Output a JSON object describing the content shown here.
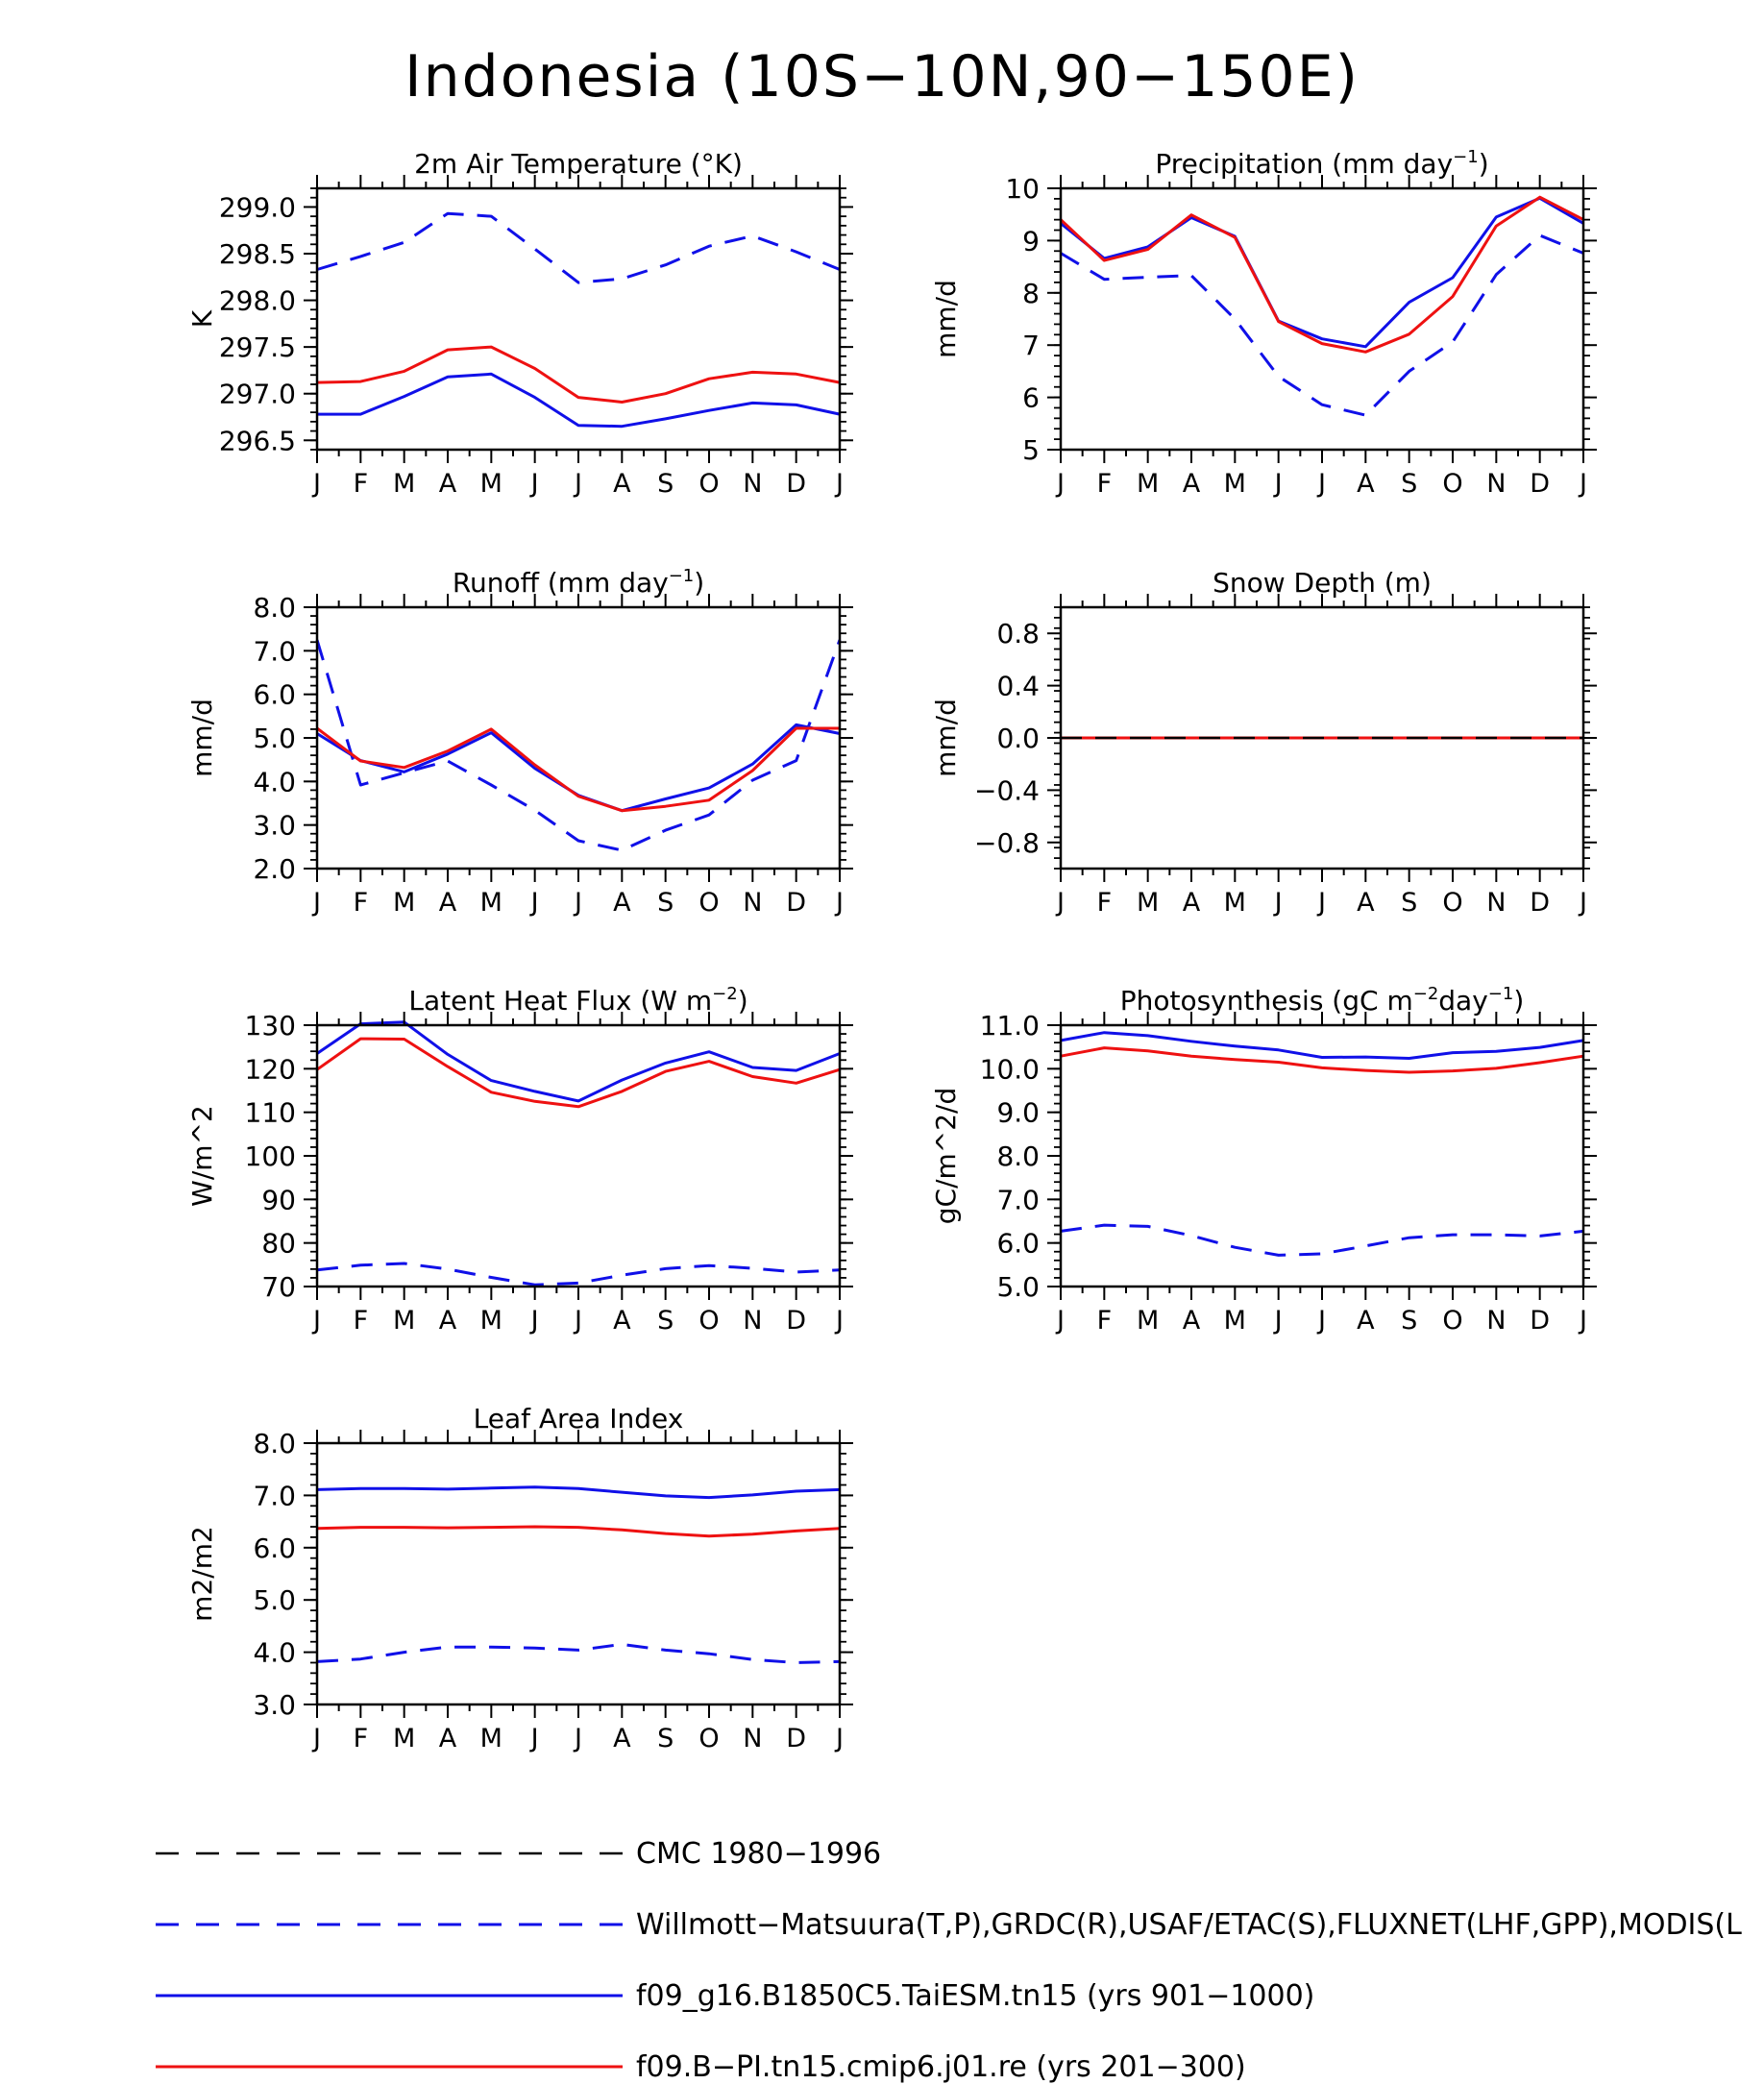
{
  "page_title": "Indonesia (10S−10N,90−150E)",
  "months": [
    "J",
    "F",
    "M",
    "A",
    "M",
    "J",
    "J",
    "A",
    "S",
    "O",
    "N",
    "D",
    "J"
  ],
  "styles": {
    "obs_color": "#1010e8",
    "model1_color": "#1010e8",
    "model2_color": "#ee1111",
    "cmc_color": "#000000"
  },
  "chart_data": [
    {
      "type": "line",
      "title": "2m Air Temperature (°K)",
      "ylabel": "K",
      "ylim": [
        296.4,
        299.2
      ],
      "yticks": [
        296.5,
        297.0,
        297.5,
        298.0,
        298.5,
        299.0
      ],
      "ytick_labels": [
        "296.5",
        "297.0",
        "297.5",
        "298.0",
        "298.5",
        "299.0"
      ],
      "series": [
        {
          "style": "obs",
          "values": [
            298.33,
            298.47,
            298.62,
            298.93,
            298.9,
            298.55,
            298.19,
            298.23,
            298.38,
            298.58,
            298.69,
            298.52,
            298.33
          ]
        },
        {
          "style": "model1",
          "values": [
            296.78,
            296.78,
            296.97,
            297.18,
            297.21,
            296.96,
            296.66,
            296.65,
            296.73,
            296.82,
            296.9,
            296.88,
            296.78
          ]
        },
        {
          "style": "model2",
          "values": [
            297.12,
            297.13,
            297.24,
            297.47,
            297.5,
            297.27,
            296.96,
            296.91,
            297.0,
            297.16,
            297.23,
            297.21,
            297.12
          ]
        }
      ]
    },
    {
      "type": "line",
      "title": "Precipitation (mm day",
      "title_sup": "−1",
      "title_end": ")",
      "ylabel": "mm/d",
      "ylim": [
        5,
        10
      ],
      "yticks": [
        5,
        6,
        7,
        8,
        9,
        10
      ],
      "ytick_labels": [
        "5",
        "6",
        "7",
        "8",
        "9",
        "10"
      ],
      "series": [
        {
          "style": "obs",
          "values": [
            8.76,
            8.26,
            8.3,
            8.33,
            7.5,
            6.4,
            5.86,
            5.66,
            6.5,
            7.06,
            8.35,
            9.1,
            8.76
          ]
        },
        {
          "style": "model1",
          "values": [
            9.33,
            8.66,
            8.88,
            9.44,
            9.08,
            7.46,
            7.12,
            6.97,
            7.82,
            8.29,
            9.45,
            9.81,
            9.33
          ]
        },
        {
          "style": "model2",
          "values": [
            9.4,
            8.62,
            8.83,
            9.49,
            9.06,
            7.45,
            7.03,
            6.87,
            7.21,
            7.93,
            9.28,
            9.83,
            9.4
          ]
        }
      ]
    },
    {
      "type": "line",
      "title": "Runoff (mm day",
      "title_sup": "−1",
      "title_end": ")",
      "ylabel": "mm/d",
      "ylim": [
        2,
        8
      ],
      "yticks": [
        2,
        3,
        4,
        5,
        6,
        7,
        8
      ],
      "ytick_labels": [
        "2.0",
        "3.0",
        "4.0",
        "5.0",
        "6.0",
        "7.0",
        "8.0"
      ],
      "series": [
        {
          "style": "obs",
          "values": [
            7.25,
            3.92,
            4.2,
            4.47,
            3.92,
            3.34,
            2.64,
            2.42,
            2.88,
            3.23,
            4.03,
            4.48,
            7.25
          ]
        },
        {
          "style": "model1",
          "values": [
            5.1,
            4.48,
            4.22,
            4.63,
            5.12,
            4.3,
            3.68,
            3.33,
            3.6,
            3.85,
            4.4,
            5.3,
            5.1
          ]
        },
        {
          "style": "model2",
          "values": [
            5.22,
            4.47,
            4.32,
            4.7,
            5.2,
            4.38,
            3.66,
            3.33,
            3.43,
            3.57,
            4.25,
            5.22,
            5.22
          ]
        }
      ]
    },
    {
      "type": "line",
      "title": "Snow Depth (m)",
      "ylabel": "mm/d",
      "ylim": [
        -1,
        1
      ],
      "yticks": [
        -0.8,
        -0.4,
        0,
        0.4,
        0.8
      ],
      "ytick_labels": [
        "−0.8",
        "−0.4",
        "0.0",
        "0.4",
        "0.8"
      ],
      "series": [
        {
          "style": "model1",
          "values": [
            0,
            0,
            0,
            0,
            0,
            0,
            0,
            0,
            0,
            0,
            0,
            0,
            0
          ]
        },
        {
          "style": "model2",
          "values": [
            0,
            0,
            0,
            0,
            0,
            0,
            0,
            0,
            0,
            0,
            0,
            0,
            0
          ]
        },
        {
          "style": "cmc",
          "values": [
            0,
            0,
            0,
            0,
            0,
            0,
            0,
            0,
            0,
            0,
            0,
            0,
            0
          ]
        }
      ]
    },
    {
      "type": "line",
      "title": "Latent Heat Flux (W m",
      "title_sup": "−2",
      "title_end": ")",
      "ylabel": "W/m^2",
      "ylim": [
        70,
        130
      ],
      "yticks": [
        70,
        80,
        90,
        100,
        110,
        120,
        130
      ],
      "ytick_labels": [
        "70",
        "80",
        "90",
        "100",
        "110",
        "120",
        "130"
      ],
      "series": [
        {
          "style": "obs",
          "values": [
            73.8,
            74.9,
            75.3,
            74.0,
            72.1,
            70.4,
            70.8,
            72.6,
            74.1,
            74.8,
            74.2,
            73.3,
            73.8
          ]
        },
        {
          "style": "model1",
          "values": [
            123.5,
            130.3,
            130.7,
            123.3,
            117.3,
            114.8,
            112.6,
            117.4,
            121.3,
            123.9,
            120.3,
            119.6,
            123.5
          ]
        },
        {
          "style": "model2",
          "values": [
            119.8,
            126.9,
            126.8,
            120.5,
            114.6,
            112.5,
            111.3,
            114.8,
            119.4,
            121.7,
            118.2,
            116.7,
            119.8
          ]
        }
      ]
    },
    {
      "type": "line",
      "title": "Photosynthesis (gC m",
      "title_sup": "−2",
      "title_mid": "day",
      "title_sup2": "−1",
      "title_end": ")",
      "ylabel": "gC/m^2/d",
      "ylim": [
        5,
        11
      ],
      "yticks": [
        5,
        6,
        7,
        8,
        9,
        10,
        11
      ],
      "ytick_labels": [
        "5.0",
        "6.0",
        "7.0",
        "8.0",
        "9.0",
        "10.0",
        "11.0"
      ],
      "series": [
        {
          "style": "obs",
          "values": [
            6.27,
            6.41,
            6.38,
            6.17,
            5.9,
            5.72,
            5.75,
            5.93,
            6.12,
            6.19,
            6.19,
            6.16,
            6.27
          ]
        },
        {
          "style": "model1",
          "values": [
            10.65,
            10.83,
            10.76,
            10.63,
            10.52,
            10.43,
            10.26,
            10.27,
            10.24,
            10.37,
            10.4,
            10.49,
            10.65
          ]
        },
        {
          "style": "model2",
          "values": [
            10.29,
            10.48,
            10.41,
            10.29,
            10.21,
            10.15,
            10.02,
            9.96,
            9.92,
            9.95,
            10.01,
            10.14,
            10.29
          ]
        }
      ]
    },
    {
      "type": "line",
      "title": "Leaf Area Index",
      "ylabel": "m2/m2",
      "ylim": [
        3,
        8
      ],
      "yticks": [
        3,
        4,
        5,
        6,
        7,
        8
      ],
      "ytick_labels": [
        "3.0",
        "4.0",
        "5.0",
        "6.0",
        "7.0",
        "8.0"
      ],
      "series": [
        {
          "style": "obs",
          "values": [
            3.82,
            3.87,
            4.0,
            4.1,
            4.1,
            4.08,
            4.04,
            4.15,
            4.04,
            3.97,
            3.86,
            3.8,
            3.82
          ]
        },
        {
          "style": "model1",
          "values": [
            7.11,
            7.13,
            7.13,
            7.12,
            7.14,
            7.16,
            7.13,
            7.06,
            6.99,
            6.96,
            7.01,
            7.08,
            7.11
          ]
        },
        {
          "style": "model2",
          "values": [
            6.37,
            6.39,
            6.39,
            6.38,
            6.39,
            6.4,
            6.39,
            6.34,
            6.27,
            6.22,
            6.26,
            6.32,
            6.37
          ]
        }
      ]
    }
  ],
  "legend": [
    {
      "style": "cmc",
      "label": "CMC 1980−1996"
    },
    {
      "style": "obs",
      "label": "Willmott−Matsuura(T,P),GRDC(R),USAF/ETAC(S),FLUXNET(LHF,GPP),MODIS(L"
    },
    {
      "style": "model1",
      "label": "f09_g16.B1850C5.TaiESM.tn15 (yrs 901−1000)"
    },
    {
      "style": "model2",
      "label": "f09.B−PI.tn15.cmip6.j01.re (yrs 201−300)"
    }
  ]
}
